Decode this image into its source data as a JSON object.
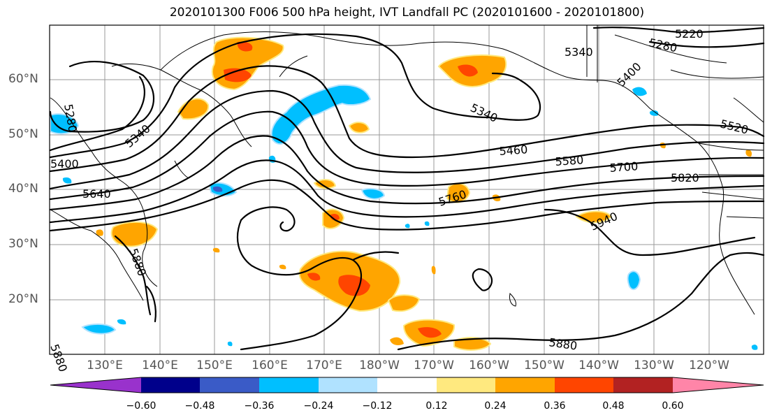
{
  "title": "2020101300 F006 500 hPa height, IVT Landfall PC (2020101600 - 2020101800)",
  "latitude_labels": [
    "60°N",
    "50°N",
    "40°N",
    "30°N",
    "20°N"
  ],
  "longitude_labels": [
    "130°E",
    "140°E",
    "150°E",
    "160°E",
    "170°E",
    "180°W",
    "170°W",
    "160°W",
    "150°W",
    "140°W",
    "130°W",
    "120°W"
  ],
  "contour_labels": [
    "5220",
    "5280",
    "5340",
    "5400",
    "5460",
    "5520",
    "5580",
    "5640",
    "5700",
    "5760",
    "5820",
    "5880",
    "5940",
    "5280",
    "5340",
    "5340",
    "5880",
    "5880",
    "5400"
  ],
  "colorbar": {
    "ticks": [
      "−0.60",
      "−0.48",
      "−0.36",
      "−0.24",
      "−0.12",
      "0.12",
      "0.24",
      "0.36",
      "0.48",
      "0.60"
    ],
    "colors": [
      "#9932cc",
      "#00008b",
      "#3a5bc7",
      "#00bfff",
      "#b0e2ff",
      "#ffffff",
      "#ffe97f",
      "#ffa500",
      "#ff4500",
      "#b22222",
      "#ff85a8"
    ]
  },
  "colors": {
    "positive_light": "#ffe97f",
    "positive_mid": "#ffa500",
    "positive_strong": "#ff4500",
    "negative_light": "#b0e2ff",
    "negative_mid": "#00bfff"
  }
}
